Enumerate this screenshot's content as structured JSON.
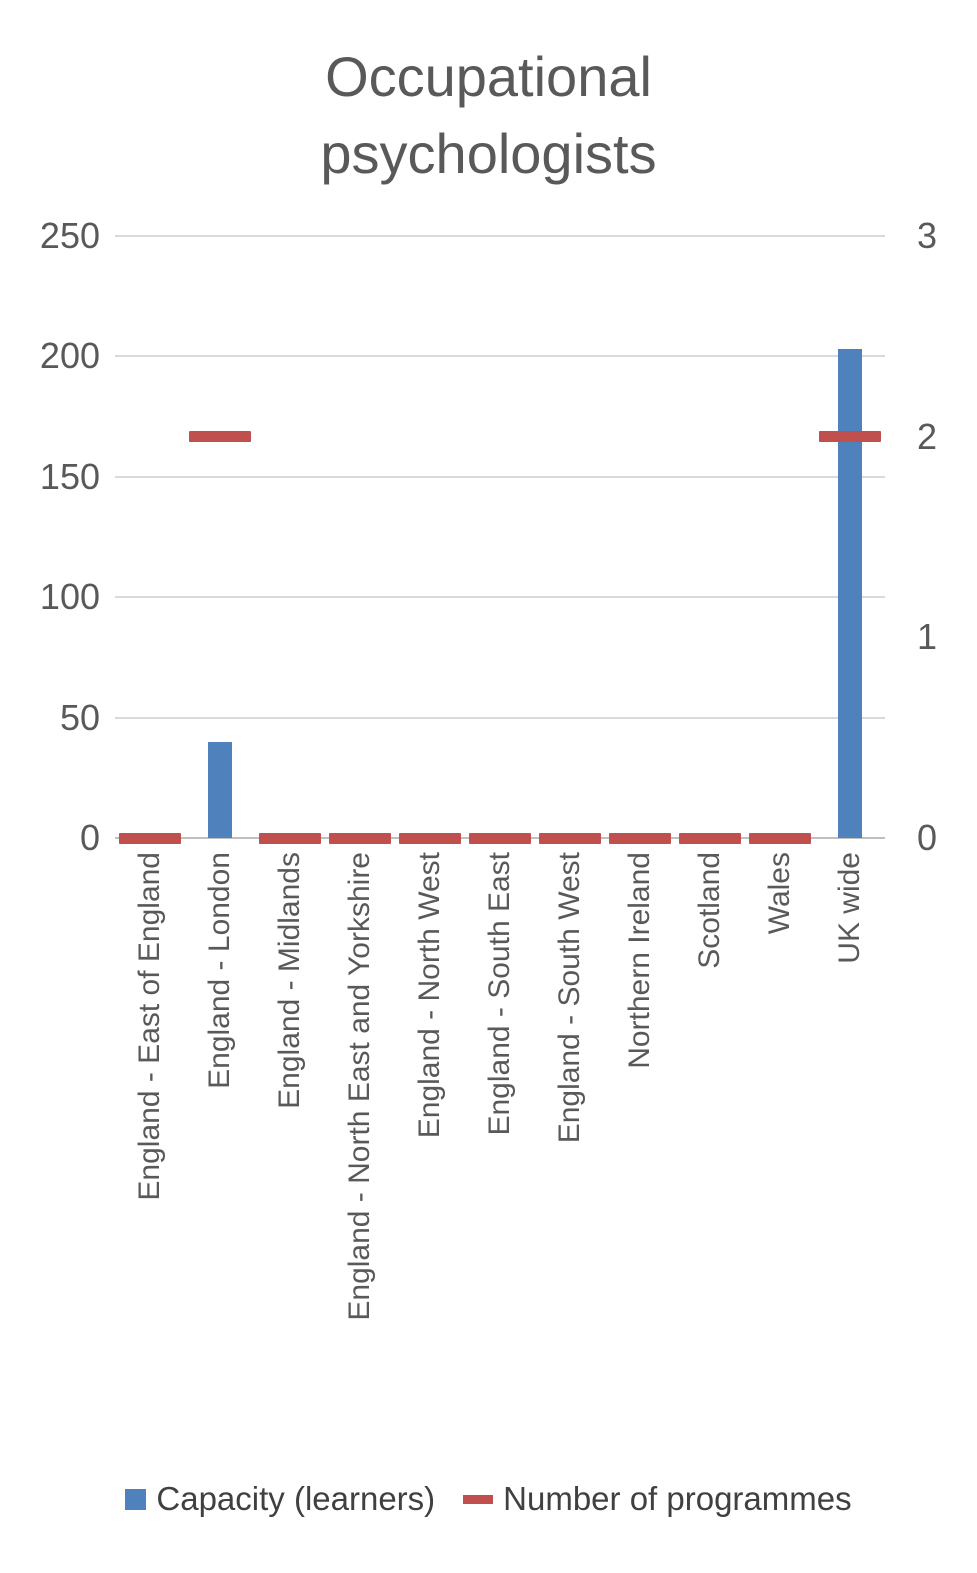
{
  "chart_data": {
    "type": "bar",
    "title": "Occupational psychologists",
    "categories": [
      "England - East of England",
      "England - London",
      "England - Midlands",
      "England - North East and Yorkshire",
      "England - North West",
      "England - South East",
      "England - South West",
      "Northern Ireland",
      "Scotland",
      "Wales",
      "UK wide"
    ],
    "series": [
      {
        "name": "Capacity (learners)",
        "type": "bar",
        "axis": "left",
        "color": "#4f81bd",
        "values": [
          0,
          40,
          0,
          0,
          0,
          0,
          0,
          0,
          0,
          0,
          203
        ]
      },
      {
        "name": "Number of programmes",
        "type": "dash",
        "axis": "right",
        "color": "#c0504d",
        "values": [
          0,
          2,
          0,
          0,
          0,
          0,
          0,
          0,
          0,
          0,
          2
        ]
      }
    ],
    "left_axis": {
      "min": 0,
      "max": 250,
      "ticks": [
        0,
        50,
        100,
        150,
        200,
        250
      ]
    },
    "right_axis": {
      "min": 0,
      "max": 3,
      "ticks": [
        0,
        1,
        2,
        3
      ]
    },
    "grid": true,
    "legend_position": "bottom",
    "colors": {
      "grid": "#d9d9d9",
      "axis_line": "#bfbfbf",
      "tick_text": "#595959",
      "title_text": "#595959",
      "legend_text": "#404040"
    }
  }
}
